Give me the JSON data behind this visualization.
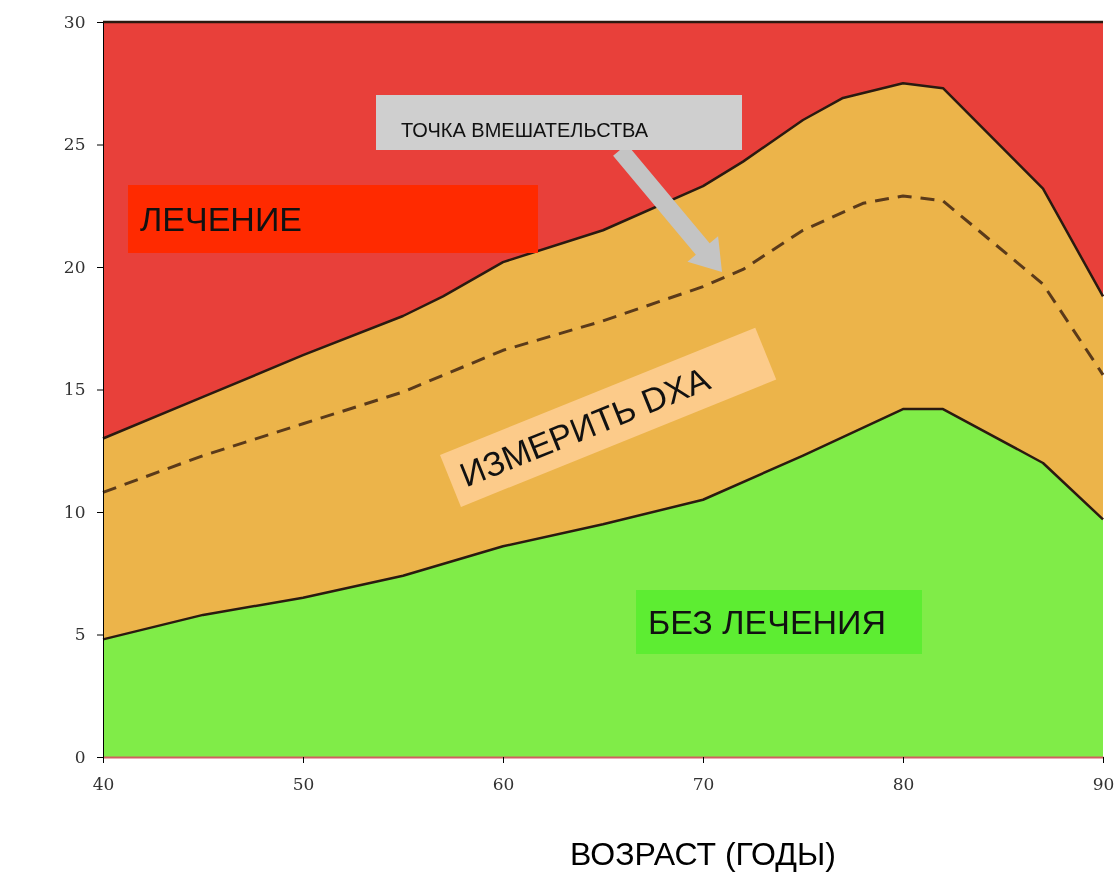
{
  "chart_data": {
    "type": "area",
    "xlabel": "ВОЗРАСТ (ГОДЫ)",
    "xlim": [
      40,
      90
    ],
    "xticks": [
      40,
      50,
      60,
      70,
      80,
      90
    ],
    "ylim": [
      0,
      30
    ],
    "yticks": [
      0,
      5,
      10,
      15,
      20,
      25,
      30
    ],
    "grid": false,
    "series": [
      {
        "name": "ЛЕЧЕНИЕ",
        "color": "#e8403a",
        "x": [
          40,
          90
        ],
        "values": [
          30,
          30
        ]
      },
      {
        "name": "ИЗМЕРИТЬ DXA",
        "color": "#ecb44a",
        "x": [
          40,
          45,
          50,
          55,
          57,
          60,
          65,
          70,
          72,
          75,
          77,
          80,
          82,
          87,
          90
        ],
        "values": [
          13.0,
          14.7,
          16.4,
          18.0,
          18.8,
          20.2,
          21.5,
          23.3,
          24.3,
          26.0,
          26.9,
          27.5,
          27.3,
          23.2,
          18.8
        ]
      },
      {
        "name": "БЕЗ ЛЕЧЕНИЯ",
        "color": "#80ec48",
        "x": [
          40,
          45,
          50,
          55,
          60,
          65,
          70,
          75,
          80,
          82,
          87,
          90
        ],
        "values": [
          4.8,
          5.8,
          6.5,
          7.4,
          8.6,
          9.5,
          10.5,
          12.3,
          14.2,
          14.2,
          12.0,
          9.7
        ]
      },
      {
        "type": "line",
        "line_style": "dashed",
        "color": "#5a3a1a",
        "x": [
          40,
          45,
          50,
          55,
          60,
          65,
          70,
          72,
          75,
          78,
          80,
          82,
          87,
          90
        ],
        "values": [
          10.8,
          12.3,
          13.6,
          14.9,
          16.6,
          17.8,
          19.2,
          19.9,
          21.5,
          22.6,
          22.9,
          22.7,
          19.3,
          15.6
        ]
      }
    ],
    "annotations": [
      "ТОЧКА ВМЕШАТЕЛЬСТВА"
    ]
  }
}
